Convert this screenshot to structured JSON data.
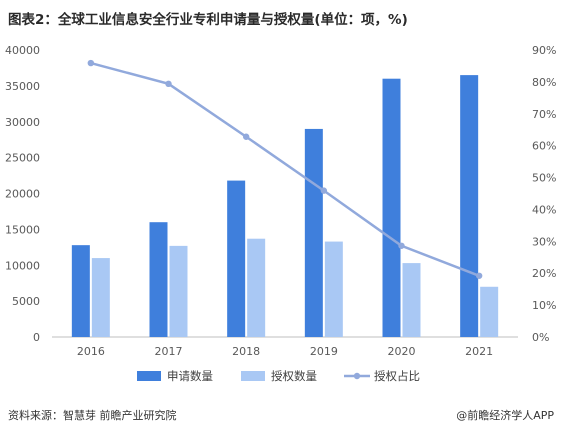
{
  "title": "图表2：全球工业信息安全行业专利申请量与授权量(单位：项，%)",
  "footer": {
    "source": "资料来源：智慧芽 前瞻产业研究院",
    "brand": "@前瞻经济学人APP"
  },
  "colors": {
    "applications": "#3f7fdc",
    "grants": "#a9c8f4",
    "ratio": "#91a9dc",
    "axis": "#bfbfbf",
    "tick": "#595959"
  },
  "chart_data": {
    "type": "bar",
    "categories": [
      "2016",
      "2017",
      "2018",
      "2019",
      "2020",
      "2021"
    ],
    "series": [
      {
        "name": "申请数量",
        "type": "bar",
        "axis": "left",
        "values": [
          12800,
          16000,
          21800,
          29000,
          36000,
          36500
        ]
      },
      {
        "name": "授权数量",
        "type": "bar",
        "axis": "left",
        "values": [
          11000,
          12700,
          13700,
          13300,
          10300,
          7000
        ]
      },
      {
        "name": "授权占比",
        "type": "line",
        "axis": "right",
        "values": [
          85.9,
          79.4,
          62.8,
          45.9,
          28.6,
          19.2
        ]
      }
    ],
    "y_left": {
      "min": 0,
      "max": 40000,
      "step": 5000,
      "ticks": [
        "0",
        "5000",
        "10000",
        "15000",
        "20000",
        "25000",
        "30000",
        "35000",
        "40000"
      ]
    },
    "y_right": {
      "min": 0,
      "max": 90,
      "step": 10,
      "ticks": [
        "0%",
        "10%",
        "20%",
        "30%",
        "40%",
        "50%",
        "60%",
        "70%",
        "80%",
        "90%"
      ]
    },
    "grid": false,
    "legend_position": "bottom"
  }
}
